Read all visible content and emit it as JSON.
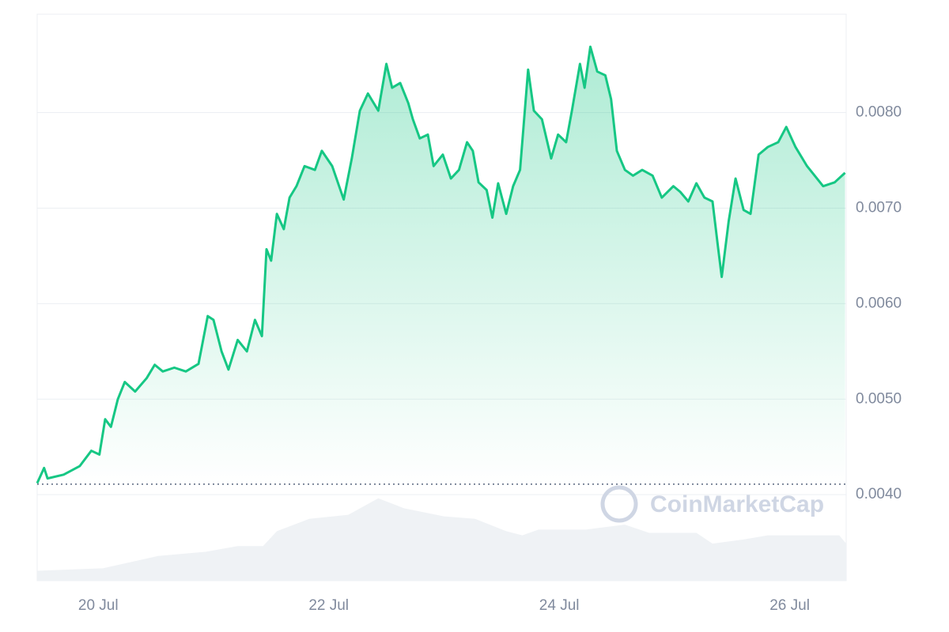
{
  "chart_data": {
    "type": "line",
    "watermark": "CoinMarketCap",
    "x": [
      19.47,
      19.53,
      19.56,
      19.7,
      19.84,
      19.94,
      20.01,
      20.06,
      20.11,
      20.17,
      20.23,
      20.32,
      20.42,
      20.49,
      20.56,
      20.66,
      20.76,
      20.87,
      20.95,
      21.0,
      21.07,
      21.13,
      21.21,
      21.29,
      21.36,
      21.42,
      21.46,
      21.5,
      21.55,
      21.61,
      21.66,
      21.72,
      21.79,
      21.88,
      21.94,
      22.03,
      22.13,
      22.2,
      22.27,
      22.34,
      22.43,
      22.5,
      22.55,
      22.62,
      22.69,
      22.73,
      22.79,
      22.86,
      22.91,
      22.99,
      23.06,
      23.13,
      23.2,
      23.25,
      23.3,
      23.37,
      23.42,
      23.47,
      23.54,
      23.6,
      23.66,
      23.73,
      23.78,
      23.85,
      23.93,
      23.99,
      24.06,
      24.11,
      24.18,
      24.22,
      24.27,
      24.33,
      24.4,
      24.45,
      24.5,
      24.57,
      24.64,
      24.72,
      24.81,
      24.89,
      24.99,
      25.05,
      25.12,
      25.19,
      25.26,
      25.33,
      25.38,
      25.41,
      25.47,
      25.53,
      25.6,
      25.66,
      25.73,
      25.81,
      25.9,
      25.97,
      26.05,
      26.15,
      26.29,
      26.39,
      26.48
    ],
    "series": [
      {
        "color": "#16c784",
        "values": [
          0.00412,
          0.00428,
          0.00417,
          0.00421,
          0.0043,
          0.00446,
          0.00442,
          0.00479,
          0.00471,
          0.005,
          0.00518,
          0.00508,
          0.00522,
          0.00536,
          0.00529,
          0.00533,
          0.00529,
          0.00537,
          0.00587,
          0.00583,
          0.0055,
          0.00531,
          0.00562,
          0.0055,
          0.00583,
          0.00566,
          0.00657,
          0.00645,
          0.00694,
          0.00678,
          0.00711,
          0.00723,
          0.00744,
          0.0074,
          0.0076,
          0.00744,
          0.00709,
          0.00752,
          0.00802,
          0.0082,
          0.00802,
          0.00851,
          0.00826,
          0.00831,
          0.0081,
          0.00793,
          0.00773,
          0.00777,
          0.00744,
          0.00756,
          0.00731,
          0.0074,
          0.00769,
          0.0076,
          0.00727,
          0.00719,
          0.0069,
          0.00726,
          0.00694,
          0.00723,
          0.0074,
          0.00845,
          0.00802,
          0.00793,
          0.00752,
          0.00777,
          0.00769,
          0.00802,
          0.00851,
          0.00826,
          0.00869,
          0.00843,
          0.00839,
          0.00814,
          0.0076,
          0.0074,
          0.00734,
          0.0074,
          0.00734,
          0.00711,
          0.00723,
          0.00717,
          0.00707,
          0.00726,
          0.00711,
          0.00707,
          0.00657,
          0.00628,
          0.00686,
          0.00731,
          0.00698,
          0.00694,
          0.00756,
          0.00764,
          0.00769,
          0.00785,
          0.00764,
          0.00744,
          0.00723,
          0.00727,
          0.00737
        ]
      }
    ],
    "baseline": 0.00411,
    "volume": {
      "color": "#eff2f5",
      "x": [
        19.47,
        20.04,
        20.52,
        20.93,
        21.21,
        21.43,
        21.55,
        21.83,
        22.17,
        22.43,
        22.65,
        23.0,
        23.27,
        23.54,
        23.68,
        23.82,
        24.23,
        24.57,
        24.78,
        25.19,
        25.33,
        25.6,
        25.81,
        26.43,
        26.49
      ],
      "values": [
        12,
        15,
        30,
        35,
        42,
        42,
        60,
        75,
        80,
        100,
        88,
        78,
        75,
        60,
        55,
        62,
        62,
        68,
        58,
        58,
        45,
        50,
        55,
        55,
        45
      ],
      "ylim": [
        0,
        110
      ]
    },
    "xlim": [
      19.47,
      26.49
    ],
    "xticks": [
      {
        "value": 20,
        "label": "20 Jul"
      },
      {
        "value": 22,
        "label": "22 Jul"
      },
      {
        "value": 24,
        "label": "24 Jul"
      },
      {
        "value": 26,
        "label": "26 Jul"
      }
    ],
    "ylim": [
      0.0031,
      0.00903
    ],
    "yticks": [
      {
        "value": 0.004,
        "label": "0.0040"
      },
      {
        "value": 0.005,
        "label": "0.0050"
      },
      {
        "value": 0.006,
        "label": "0.0060"
      },
      {
        "value": 0.007,
        "label": "0.0070"
      },
      {
        "value": 0.008,
        "label": "0.0080"
      }
    ],
    "grid": true
  }
}
